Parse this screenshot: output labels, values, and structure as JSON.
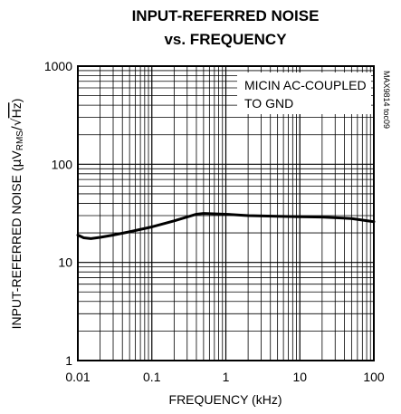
{
  "chart_data": {
    "type": "line",
    "title_line1": "INPUT-REFERRED NOISE",
    "title_line2": "vs. FREQUENCY",
    "xlabel": "FREQUENCY (kHz)",
    "ylabel_prefix": "INPUT-REFERRED NOISE (",
    "ylabel_mu": "μ",
    "ylabel_v": "V",
    "ylabel_rms": "RMS",
    "ylabel_slash": "/√",
    "ylabel_hz": "Hz",
    "ylabel_suffix": ")",
    "x_scale": "log",
    "y_scale": "log",
    "xlim": [
      0.01,
      100
    ],
    "ylim": [
      1,
      1000
    ],
    "x_ticks": [
      "0.01",
      "0.1",
      "1",
      "10",
      "100"
    ],
    "y_ticks": [
      "1",
      "10",
      "100",
      "1000"
    ],
    "grid": true,
    "annotation_line1": "MICIN AC-COUPLED",
    "annotation_line2": "TO GND",
    "figure_id": "MAX9814 toc09",
    "series": [
      {
        "x": [
          0.01,
          0.012,
          0.015,
          0.02,
          0.03,
          0.05,
          0.1,
          0.2,
          0.4,
          0.5,
          1,
          2,
          5,
          10,
          20,
          50,
          100
        ],
        "y": [
          19,
          17.8,
          17.5,
          18,
          19,
          20.5,
          23,
          26.5,
          31,
          31.5,
          31,
          30,
          29.5,
          29.2,
          29,
          28,
          26
        ]
      }
    ]
  }
}
